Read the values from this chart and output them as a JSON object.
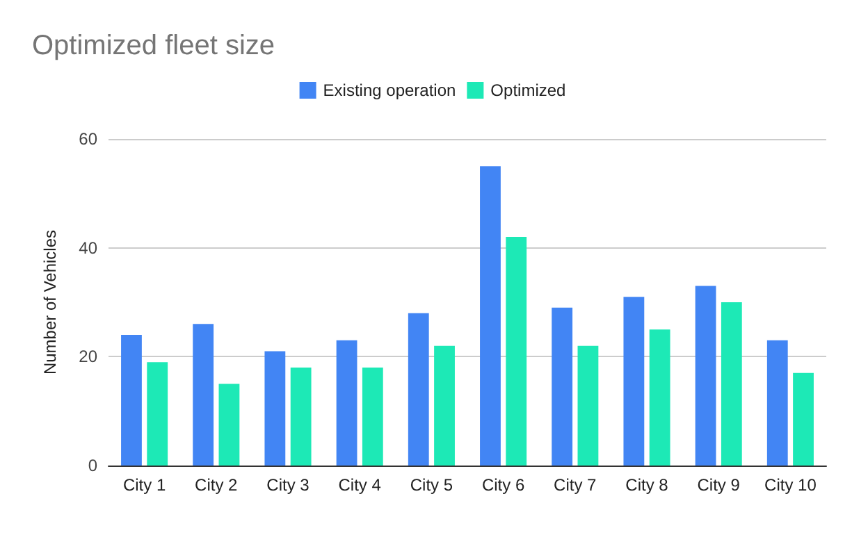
{
  "chart_data": {
    "type": "bar",
    "title": "Optimized fleet size",
    "ylabel": "Number of Vehicles",
    "categories": [
      "City 1",
      "City 2",
      "City 3",
      "City 4",
      "City 5",
      "City 6",
      "City 7",
      "City 8",
      "City 9",
      "City 10"
    ],
    "series": [
      {
        "name": "Existing operation",
        "color": "#4285f4",
        "values": [
          24,
          26,
          21,
          23,
          28,
          55,
          29,
          31,
          33,
          23
        ]
      },
      {
        "name": "Optimized",
        "color": "#1de9b6",
        "values": [
          19,
          15,
          18,
          18,
          22,
          42,
          22,
          25,
          30,
          17
        ]
      }
    ],
    "ylim": [
      0,
      60
    ],
    "yticks": [
      0,
      20,
      40,
      60
    ],
    "grid": "y",
    "legend": "top"
  }
}
